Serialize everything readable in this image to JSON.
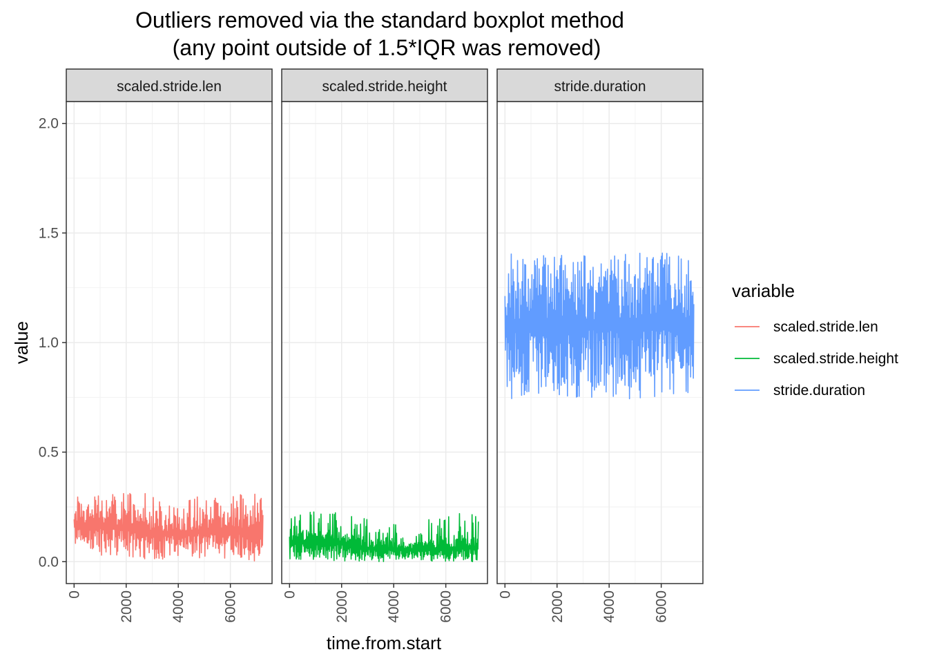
{
  "chart_data": {
    "type": "line",
    "title_line1": "Outliers removed via the standard boxplot method",
    "title_line2": "(any point outside of 1.5*IQR was removed)",
    "xlabel": "time.from.start",
    "ylabel": "value",
    "xlim": [
      -300,
      7600
    ],
    "ylim": [
      -0.1,
      2.1
    ],
    "x_ticks": [
      0,
      2000,
      4000,
      6000
    ],
    "x_tick_labels": [
      "0",
      "2000",
      "4000",
      "6000"
    ],
    "y_ticks": [
      0,
      0.5,
      1.0,
      1.5,
      2.0
    ],
    "y_tick_labels": [
      "0.0",
      "0.5",
      "1.0",
      "1.5",
      "2.0"
    ],
    "grid": true,
    "legend": {
      "title": "variable",
      "position": "right",
      "entries": [
        "scaled.stride.len",
        "scaled.stride.height",
        "stride.duration"
      ]
    },
    "facets": [
      {
        "label": "scaled.stride.len",
        "color": "#F8766D",
        "x_range": [
          0,
          7250
        ],
        "upper": [
          [
            0,
            0.31
          ],
          [
            1000,
            0.31
          ],
          [
            2000,
            0.32
          ],
          [
            3000,
            0.31
          ],
          [
            4000,
            0.29
          ],
          [
            5000,
            0.31
          ],
          [
            6000,
            0.31
          ],
          [
            7250,
            0.32
          ]
        ],
        "lower": [
          [
            0,
            0.04
          ],
          [
            1000,
            0.03
          ],
          [
            2000,
            0.02
          ],
          [
            3000,
            0.01
          ],
          [
            4000,
            0.01
          ],
          [
            5000,
            0.01
          ],
          [
            6000,
            0.01
          ],
          [
            7250,
            0.0
          ]
        ],
        "typical_high": [
          [
            0,
            0.24
          ],
          [
            2000,
            0.24
          ],
          [
            3200,
            0.2
          ],
          [
            4500,
            0.21
          ],
          [
            7250,
            0.23
          ]
        ],
        "typical_low": [
          [
            0,
            0.09
          ],
          [
            2000,
            0.07
          ],
          [
            3200,
            0.05
          ],
          [
            4500,
            0.06
          ],
          [
            7250,
            0.05
          ]
        ]
      },
      {
        "label": "scaled.stride.height",
        "color": "#00BA38",
        "x_range": [
          0,
          7250
        ],
        "upper": [
          [
            0,
            0.22
          ],
          [
            1000,
            0.23
          ],
          [
            2000,
            0.23
          ],
          [
            3000,
            0.2
          ],
          [
            3100,
            0.16
          ],
          [
            4000,
            0.17
          ],
          [
            5000,
            0.2
          ],
          [
            6000,
            0.22
          ],
          [
            7250,
            0.22
          ]
        ],
        "lower": [
          [
            0,
            0.01
          ],
          [
            1000,
            0.01
          ],
          [
            2000,
            0.0
          ],
          [
            3000,
            0.0
          ],
          [
            4000,
            0.0
          ],
          [
            5000,
            0.0
          ],
          [
            6000,
            0.0
          ],
          [
            7250,
            0.0
          ]
        ],
        "typical_high": [
          [
            0,
            0.15
          ],
          [
            2000,
            0.14
          ],
          [
            3100,
            0.1
          ],
          [
            4500,
            0.09
          ],
          [
            7250,
            0.11
          ]
        ],
        "typical_low": [
          [
            0,
            0.03
          ],
          [
            2000,
            0.03
          ],
          [
            3100,
            0.02
          ],
          [
            4500,
            0.02
          ],
          [
            7250,
            0.02
          ]
        ]
      },
      {
        "label": "stride.duration",
        "color": "#619CFF",
        "x_range": [
          0,
          7250
        ],
        "upper": [
          [
            0,
            1.41
          ],
          [
            7250,
            1.41
          ]
        ],
        "lower": [
          [
            0,
            0.74
          ],
          [
            7250,
            0.74
          ]
        ],
        "typical_high": [
          [
            0,
            1.3
          ],
          [
            7250,
            1.3
          ]
        ],
        "typical_low": [
          [
            0,
            0.86
          ],
          [
            7250,
            0.86
          ]
        ]
      }
    ]
  }
}
